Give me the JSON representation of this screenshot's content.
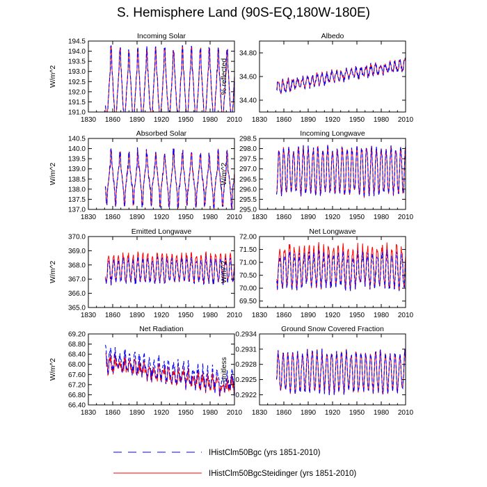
{
  "figure": {
    "title": "S. Hemisphere Land (90S-EQ,180W-180E)"
  },
  "legend": [
    {
      "label": "IHistClm50Bgc (yrs 1851-2010)",
      "color": "#0000ff",
      "dash": "dashed"
    },
    {
      "label": "IHistClm50BgcSteidinger (yrs 1851-2010)",
      "color": "#ff0000",
      "dash": "solid"
    }
  ],
  "chart_data": [
    {
      "type": "line",
      "title": "Incoming Solar",
      "ylabel": "W/m^2",
      "xlim": [
        1830,
        2010
      ],
      "xticks": [
        1830,
        1860,
        1890,
        1920,
        1950,
        1980,
        2010
      ],
      "ylim": [
        191.0,
        194.5
      ],
      "yticks": [
        191.0,
        191.5,
        192.0,
        192.5,
        193.0,
        193.5,
        194.0,
        194.5
      ],
      "ytick_labels": [
        "191.0",
        "191.5",
        "192.0",
        "192.5",
        "193.0",
        "193.5",
        "194.0",
        "194.5"
      ],
      "x_start": 1851,
      "x_end": 2010,
      "period": 11,
      "phase": 1858,
      "mean": 192.1,
      "amplitude": 1.3,
      "trend": 0.0,
      "noise": 0.15,
      "spike": 0.8,
      "diff": 0.0
    },
    {
      "type": "line",
      "title": "Albedo",
      "ylabel": "% reflected",
      "xlim": [
        1830,
        2010
      ],
      "xticks": [
        1830,
        1860,
        1890,
        1920,
        1950,
        1980,
        2010
      ],
      "ylim": [
        34.3,
        34.9
      ],
      "yticks": [
        34.4,
        34.6,
        34.8
      ],
      "ytick_labels": [
        "34.40",
        "34.60",
        "34.80"
      ],
      "x_start": 1851,
      "x_end": 2010,
      "period": 6,
      "phase": 1853,
      "mean": 34.51,
      "amplitude": 0.04,
      "trend": 0.0012,
      "noise": 0.025,
      "spike": 0.0,
      "diff": 0.004
    },
    {
      "type": "line",
      "title": "Absorbed Solar",
      "ylabel": "W/m^2",
      "xlim": [
        1830,
        2010
      ],
      "xticks": [
        1830,
        1860,
        1890,
        1920,
        1950,
        1980,
        2010
      ],
      "ylim": [
        137.0,
        140.5
      ],
      "yticks": [
        137.0,
        137.5,
        138.0,
        138.5,
        139.0,
        139.5,
        140.0,
        140.5
      ],
      "ytick_labels": [
        "137.0",
        "137.5",
        "138.0",
        "138.5",
        "139.0",
        "139.5",
        "140.0",
        "140.5"
      ],
      "x_start": 1851,
      "x_end": 2010,
      "period": 11,
      "phase": 1858,
      "mean": 138.6,
      "amplitude": 0.7,
      "trend": -0.001,
      "noise": 0.15,
      "spike": 0.7,
      "diff": 0.0
    },
    {
      "type": "line",
      "title": "Incoming Longwave",
      "ylabel": "W/m^2",
      "xlim": [
        1830,
        2010
      ],
      "xticks": [
        1830,
        1860,
        1890,
        1920,
        1950,
        1980,
        2010
      ],
      "ylim": [
        295.0,
        298.5
      ],
      "yticks": [
        295.0,
        295.5,
        296.0,
        296.5,
        297.0,
        297.5,
        298.0,
        298.5
      ],
      "ytick_labels": [
        "295.0",
        "295.5",
        "296.0",
        "296.5",
        "297.0",
        "297.5",
        "298.0",
        "298.5"
      ],
      "x_start": 1851,
      "x_end": 2010,
      "period": 6,
      "phase": 1854,
      "mean": 296.9,
      "amplitude": 1.1,
      "trend": 0.0,
      "noise": 0.2,
      "spike": 0.0,
      "diff": 0.0
    },
    {
      "type": "line",
      "title": "Emitted Longwave",
      "ylabel": "W/m^2",
      "xlim": [
        1830,
        2010
      ],
      "xticks": [
        1830,
        1860,
        1890,
        1920,
        1950,
        1980,
        2010
      ],
      "ylim": [
        365.0,
        370.0
      ],
      "yticks": [
        365.0,
        366.0,
        367.0,
        368.0,
        369.0,
        370.0
      ],
      "ytick_labels": [
        "365.0",
        "366.0",
        "367.0",
        "368.0",
        "369.0",
        "370.0"
      ],
      "x_start": 1851,
      "x_end": 2010,
      "period": 6,
      "phase": 1855,
      "mean": 367.6,
      "amplitude": 0.8,
      "trend": 0.0,
      "noise": 0.25,
      "spike": 0.0,
      "diff": 0.35
    },
    {
      "type": "line",
      "title": "Net Longwave",
      "ylabel": "W/m^2",
      "xlim": [
        1830,
        2010
      ],
      "xticks": [
        1830,
        1860,
        1890,
        1920,
        1950,
        1980,
        2010
      ],
      "ylim": [
        69.25,
        72.0
      ],
      "yticks": [
        69.5,
        70.0,
        70.5,
        71.0,
        71.5,
        72.0
      ],
      "ytick_labels": [
        "69.50",
        "70.00",
        "70.50",
        "71.00",
        "71.50",
        "72.00"
      ],
      "x_start": 1851,
      "x_end": 2010,
      "period": 6,
      "phase": 1855,
      "mean": 70.7,
      "amplitude": 0.6,
      "trend": 0.0,
      "noise": 0.2,
      "spike": 0.0,
      "diff": 0.3
    },
    {
      "type": "line",
      "title": "Net Radiation",
      "ylabel": "W/m^2",
      "xlim": [
        1830,
        2010
      ],
      "xticks": [
        1830,
        1860,
        1890,
        1920,
        1950,
        1980,
        2010
      ],
      "ylim": [
        66.4,
        69.2
      ],
      "yticks": [
        66.4,
        66.8,
        67.2,
        67.6,
        68.0,
        68.4,
        68.8,
        69.2
      ],
      "ytick_labels": [
        "66.40",
        "66.80",
        "67.20",
        "67.60",
        "68.00",
        "68.40",
        "68.80",
        "69.20"
      ],
      "x_start": 1851,
      "x_end": 2010,
      "period": 6,
      "phase": 1857,
      "mean": 68.2,
      "amplitude": 0.35,
      "trend": -0.006,
      "noise": 0.25,
      "spike": 0.0,
      "diff": -0.3
    },
    {
      "type": "line",
      "title": "Ground Snow Covered Fraction",
      "ylabel": "unitless",
      "xlim": [
        1830,
        2010
      ],
      "xticks": [
        1830,
        1860,
        1890,
        1920,
        1950,
        1980,
        2010
      ],
      "ylim": [
        0.292,
        0.2934
      ],
      "yticks": [
        0.2922,
        0.2925,
        0.2928,
        0.2931,
        0.2934
      ],
      "ytick_labels": [
        "0.2922",
        "0.2925",
        "0.2928",
        "0.2931",
        "0.2934"
      ],
      "x_start": 1851,
      "x_end": 2010,
      "period": 6,
      "phase": 1853,
      "mean": 0.29265,
      "amplitude": 0.00038,
      "trend": 0.0,
      "noise": 8e-05,
      "spike": 0.0,
      "diff": 0.0
    }
  ]
}
